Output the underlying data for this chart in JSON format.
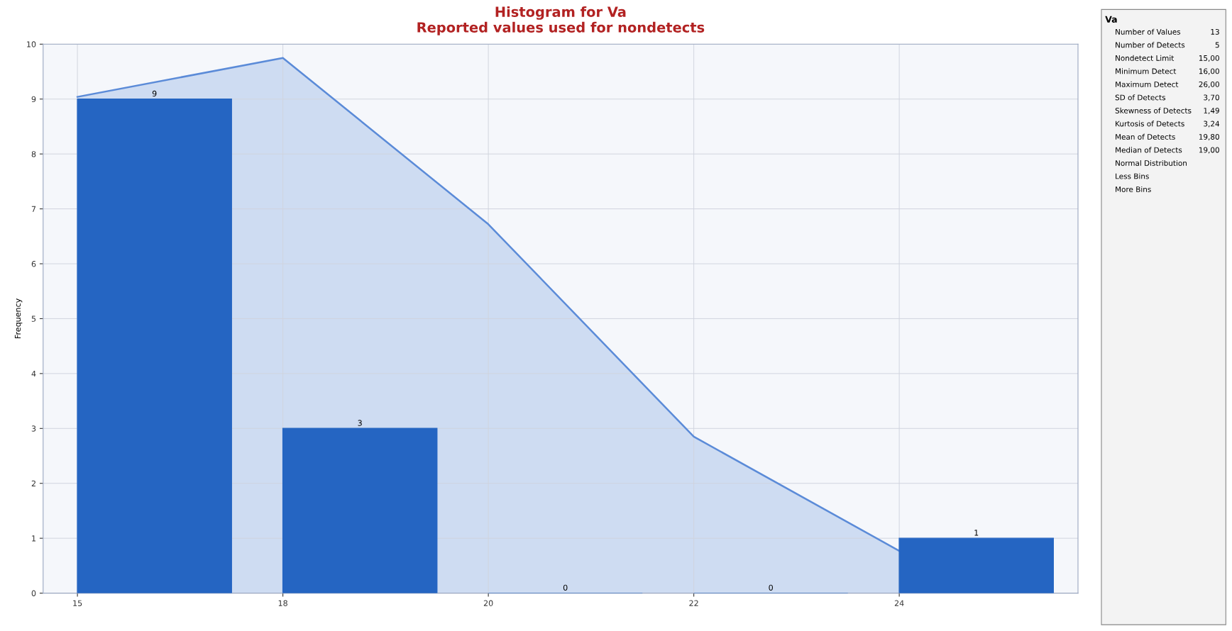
{
  "chart_data": {
    "type": "bar",
    "title": "Histogram for Va\nReported values used for nondetects",
    "ylabel": "Frequency",
    "categories": [
      "15",
      "18",
      "20",
      "22",
      "24"
    ],
    "series": [
      {
        "type": "bar",
        "color": "#2565c2",
        "values": [
          9,
          3,
          0,
          0,
          1
        ],
        "value_labels": [
          "9",
          "3",
          "0",
          "0",
          "1"
        ]
      },
      {
        "type": "area",
        "color": "#5b8bd8",
        "values": [
          9.04,
          9.75,
          6.72,
          2.85,
          0.77
        ]
      }
    ],
    "ylim": [
      0,
      10
    ],
    "yticks": [
      0,
      1,
      2,
      3,
      4,
      5,
      6,
      7,
      8,
      9,
      10
    ],
    "grid": true,
    "annotations": [
      "Va",
      "Number of Values",
      "13",
      "Number of Detects",
      "5",
      "Nondetect Limit",
      "15,00",
      "Minimum Detect",
      "16,00",
      "Maximum Detect",
      "26,00",
      "SD of Detects",
      "3,70",
      "Skewness of Detects",
      "1,49",
      "Kurtosis of Detects",
      "3,24",
      "Mean of Detects",
      "19,80",
      "Median of Detects",
      "19,00",
      "Normal Distribution",
      "Less Bins",
      "More Bins"
    ]
  }
}
